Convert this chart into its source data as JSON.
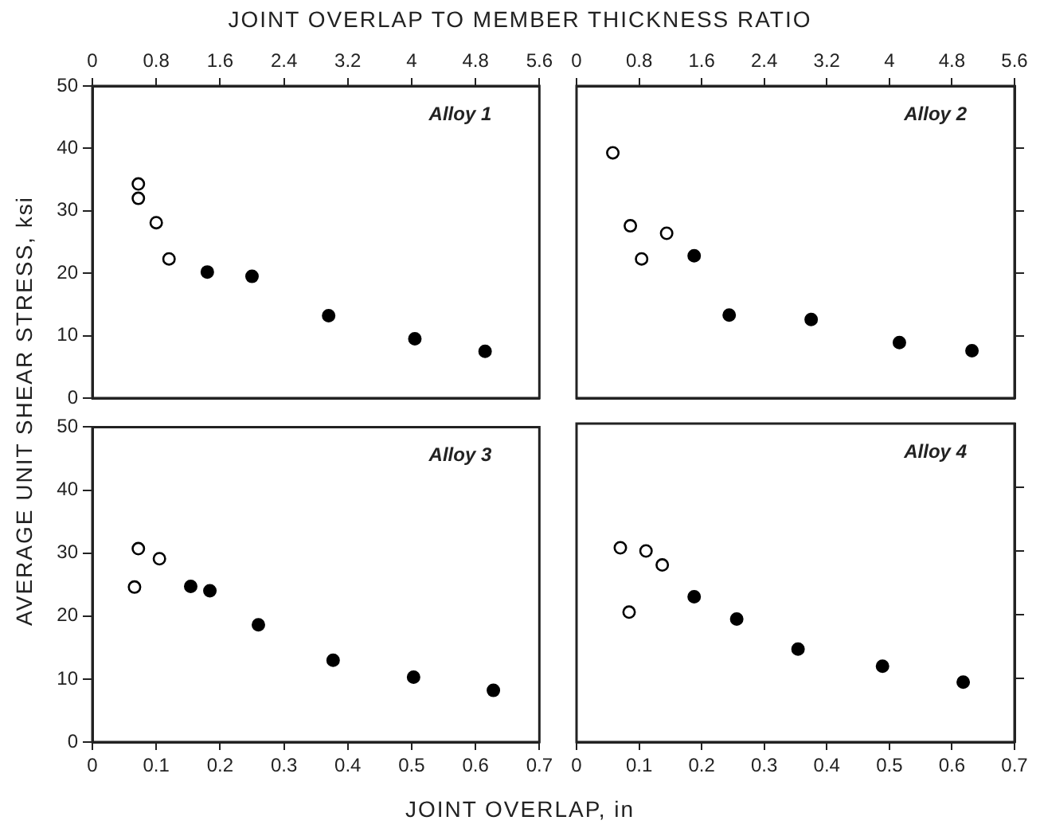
{
  "chart_data": [
    {
      "type": "scatter",
      "annotations": [
        "Alloy 1"
      ],
      "x2label": "JOINT OVERLAP TO MEMBER THICKNESS RATIO",
      "ylabel": "AVERAGE UNIT SHEAR STRESS, ksi",
      "xlim": [
        0,
        0.7
      ],
      "ylim": [
        0,
        50
      ],
      "yticks": [
        0,
        10,
        20,
        30,
        40,
        50
      ],
      "x2lim": [
        0,
        5.6
      ],
      "x2ticks": [
        0,
        0.8,
        1.6,
        2.4,
        3.2,
        4.0,
        4.8,
        5.6
      ],
      "tick_labels": "y",
      "marker": "circle",
      "series": [
        {
          "color": "#000000",
          "x": [
            0.072,
            0.072,
            0.1,
            0.12
          ],
          "values": [
            34.3,
            32.0,
            28.1,
            22.3
          ]
        },
        {
          "color": "#000000",
          "x": [
            0.18,
            0.25,
            0.37,
            0.505,
            0.615
          ],
          "values": [
            20.2,
            19.5,
            13.2,
            9.5,
            7.5
          ]
        }
      ]
    },
    {
      "type": "scatter",
      "annotations": [
        "Alloy 2"
      ],
      "xlim": [
        0,
        0.7
      ],
      "ylim": [
        0,
        50
      ],
      "yticks": [
        {
          "value": 10,
          "label": null
        },
        {
          "value": 20,
          "label": null
        },
        {
          "value": 30,
          "label": null
        },
        {
          "value": 40,
          "label": null
        }
      ],
      "x2lim": [
        0,
        5.6
      ],
      "x2ticks": [
        0,
        0.8,
        1.6,
        2.4,
        3.2,
        4.0,
        4.8,
        5.6
      ],
      "tick_labels": false,
      "marker": "circle",
      "series": [
        {
          "color": "#000000",
          "x": [
            0.058,
            0.086,
            0.104,
            0.144
          ],
          "values": [
            39.3,
            27.6,
            22.3,
            26.4
          ]
        },
        {
          "color": "#000000",
          "x": [
            0.188,
            0.244,
            0.375,
            0.516,
            0.632
          ],
          "values": [
            22.8,
            13.3,
            12.6,
            8.9,
            7.6
          ]
        }
      ]
    },
    {
      "type": "scatter",
      "annotations": [
        "Alloy 3"
      ],
      "xlabel": "JOINT OVERLAP, in",
      "xlim": [
        0,
        0.7
      ],
      "ylim": [
        0,
        50
      ],
      "xticks": [
        0,
        0.1,
        0.2,
        0.3,
        0.4,
        0.5,
        0.6,
        0.7
      ],
      "yticks": [
        0,
        10,
        20,
        30,
        40,
        50
      ],
      "marker": "circle",
      "series": [
        {
          "color": "#000000",
          "x": [
            0.066,
            0.072,
            0.105
          ],
          "values": [
            24.6,
            30.7,
            29.1
          ]
        },
        {
          "color": "#000000",
          "x": [
            0.154,
            0.184,
            0.26,
            0.377,
            0.503,
            0.628
          ],
          "values": [
            24.7,
            24.0,
            18.6,
            13.0,
            10.3,
            8.2
          ]
        }
      ]
    },
    {
      "type": "scatter",
      "annotations": [
        "Alloy 4"
      ],
      "xlim": [
        0,
        0.7
      ],
      "ylim": [
        0,
        50
      ],
      "xticks": [
        0,
        0.1,
        0.2,
        0.3,
        0.4,
        0.5,
        0.6,
        0.7
      ],
      "yticks": [
        {
          "value": 10,
          "label": null
        },
        {
          "value": 20,
          "label": null
        },
        {
          "value": 30,
          "label": null
        },
        {
          "value": 40,
          "label": null
        }
      ],
      "tick_labels": "x",
      "marker": "circle",
      "series": [
        {
          "color": "#000000",
          "x": [
            0.07,
            0.084,
            0.111,
            0.137
          ],
          "values": [
            30.5,
            20.4,
            30.0,
            27.8
          ]
        },
        {
          "color": "#000000",
          "x": [
            0.188,
            0.256,
            0.354,
            0.489,
            0.618
          ],
          "values": [
            22.8,
            19.3,
            14.6,
            11.9,
            9.4
          ]
        }
      ]
    }
  ]
}
